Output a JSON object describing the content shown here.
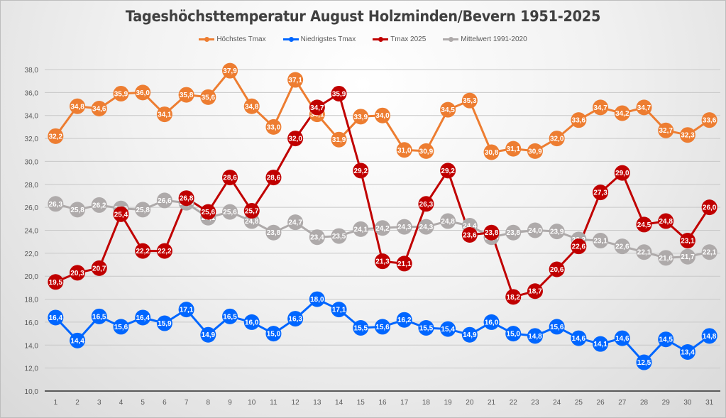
{
  "chart_data": {
    "type": "line",
    "title": "Tageshöchsttemperatur August Holzminden/Bevern 1951-2025",
    "xlabel": "",
    "ylabel": "",
    "x": [
      1,
      2,
      3,
      4,
      5,
      6,
      7,
      8,
      9,
      10,
      11,
      12,
      13,
      14,
      15,
      16,
      17,
      18,
      19,
      20,
      21,
      22,
      23,
      24,
      25,
      26,
      27,
      28,
      29,
      30,
      31
    ],
    "ylim": [
      10,
      38
    ],
    "yticks": [
      "10,0",
      "12,0",
      "14,0",
      "16,0",
      "18,0",
      "20,0",
      "22,0",
      "24,0",
      "26,0",
      "28,0",
      "30,0",
      "32,0",
      "34,0",
      "36,0",
      "38,0"
    ],
    "grid": true,
    "legend_position": "top",
    "series": [
      {
        "name": "Höchstes Tmax",
        "color": "#ED7D31",
        "values": [
          32.2,
          34.8,
          34.6,
          35.9,
          36.0,
          34.1,
          35.8,
          35.6,
          37.9,
          34.8,
          33.0,
          37.1,
          34.1,
          31.9,
          33.9,
          34.0,
          31.0,
          30.9,
          34.5,
          35.3,
          30.8,
          31.1,
          30.9,
          32.0,
          33.6,
          34.7,
          34.2,
          34.7,
          32.7,
          32.3,
          33.6
        ]
      },
      {
        "name": "Niedrigstes Tmax",
        "color": "#0066FF",
        "values": [
          16.4,
          14.4,
          16.5,
          15.6,
          16.4,
          15.9,
          17.1,
          14.9,
          16.5,
          16.0,
          15.0,
          16.3,
          18.0,
          17.1,
          15.5,
          15.6,
          16.2,
          15.5,
          15.4,
          14.9,
          16.0,
          15.0,
          14.8,
          15.6,
          14.6,
          14.1,
          14.6,
          12.5,
          14.5,
          13.4,
          14.8
        ]
      },
      {
        "name": "Tmax 2025",
        "color": "#C00000",
        "values": [
          19.5,
          20.3,
          20.7,
          25.4,
          22.2,
          22.2,
          26.8,
          25.6,
          28.6,
          25.7,
          28.6,
          32.0,
          34.7,
          35.9,
          29.2,
          21.3,
          21.1,
          26.3,
          29.2,
          23.6,
          23.8,
          18.2,
          18.7,
          20.6,
          22.6,
          27.3,
          29.0,
          24.5,
          24.8,
          23.1,
          26.0
        ]
      },
      {
        "name": "Mittelwert 1991-2020",
        "color": "#AEAAAA",
        "values": [
          26.3,
          25.8,
          26.2,
          25.9,
          25.8,
          26.6,
          26.4,
          25.1,
          25.6,
          24.8,
          23.8,
          24.7,
          23.4,
          23.5,
          24.1,
          24.2,
          24.3,
          24.3,
          24.8,
          24.4,
          23.4,
          23.8,
          24.0,
          23.9,
          23.2,
          23.1,
          22.6,
          22.1,
          21.6,
          21.7,
          22.1
        ]
      }
    ]
  }
}
